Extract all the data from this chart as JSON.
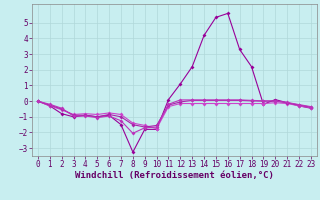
{
  "xlabel": "Windchill (Refroidissement éolien,°C)",
  "background_color": "#c8eef0",
  "grid_color": "#b0d8da",
  "line_color1": "#990099",
  "line_color2": "#cc44cc",
  "line_color3": "#aa22aa",
  "line_color4": "#bb33bb",
  "xlim": [
    -0.5,
    23.5
  ],
  "ylim": [
    -3.5,
    6.2
  ],
  "yticks": [
    -3,
    -2,
    -1,
    0,
    1,
    2,
    3,
    4,
    5
  ],
  "xticks": [
    0,
    1,
    2,
    3,
    4,
    5,
    6,
    7,
    8,
    9,
    10,
    11,
    12,
    13,
    14,
    15,
    16,
    17,
    18,
    19,
    20,
    21,
    22,
    23
  ],
  "series1_x": [
    0,
    1,
    2,
    3,
    4,
    5,
    6,
    7,
    8,
    9,
    10,
    11,
    12,
    13,
    14,
    15,
    16,
    17,
    18,
    19,
    20,
    21,
    22,
    23
  ],
  "series1_y": [
    0.0,
    -0.3,
    -0.8,
    -1.0,
    -0.9,
    -1.0,
    -0.9,
    -1.5,
    -3.25,
    -1.8,
    -1.8,
    0.1,
    1.1,
    2.2,
    4.2,
    5.35,
    5.6,
    3.3,
    2.2,
    -0.2,
    0.1,
    -0.1,
    -0.3,
    -0.45
  ],
  "series2_x": [
    0,
    1,
    2,
    3,
    4,
    5,
    6,
    7,
    8,
    9,
    10,
    11,
    12,
    13,
    14,
    15,
    16,
    17,
    18,
    19,
    20,
    21,
    22,
    23
  ],
  "series2_y": [
    0.0,
    -0.3,
    -0.55,
    -0.85,
    -0.8,
    -0.85,
    -0.75,
    -0.85,
    -1.4,
    -1.55,
    -1.75,
    -0.35,
    -0.15,
    -0.15,
    -0.15,
    -0.15,
    -0.15,
    -0.15,
    -0.15,
    -0.15,
    -0.1,
    -0.15,
    -0.3,
    -0.42
  ],
  "series3_x": [
    0,
    1,
    2,
    3,
    4,
    5,
    6,
    7,
    8,
    9,
    10,
    11,
    12,
    13,
    14,
    15,
    16,
    17,
    18,
    19,
    20,
    21,
    22,
    23
  ],
  "series3_y": [
    0.0,
    -0.25,
    -0.5,
    -0.9,
    -0.9,
    -1.0,
    -0.85,
    -1.0,
    -1.5,
    -1.65,
    -1.55,
    -0.25,
    -0.05,
    0.05,
    0.05,
    0.05,
    0.05,
    0.05,
    0.02,
    0.0,
    0.0,
    -0.1,
    -0.25,
    -0.38
  ],
  "series4_x": [
    0,
    1,
    2,
    3,
    4,
    5,
    6,
    7,
    8,
    9,
    10,
    11,
    12,
    13,
    14,
    15,
    16,
    17,
    18,
    19,
    20,
    21,
    22,
    23
  ],
  "series4_y": [
    0.0,
    -0.2,
    -0.45,
    -0.95,
    -0.95,
    -1.05,
    -0.95,
    -1.25,
    -2.05,
    -1.7,
    -1.65,
    -0.2,
    0.08,
    0.08,
    0.08,
    0.08,
    0.08,
    0.08,
    0.05,
    0.02,
    0.02,
    -0.08,
    -0.22,
    -0.35
  ],
  "marker": "D",
  "marker_size": 2.0,
  "line_width": 0.8,
  "tick_fontsize": 5.5,
  "label_fontsize": 6.5
}
